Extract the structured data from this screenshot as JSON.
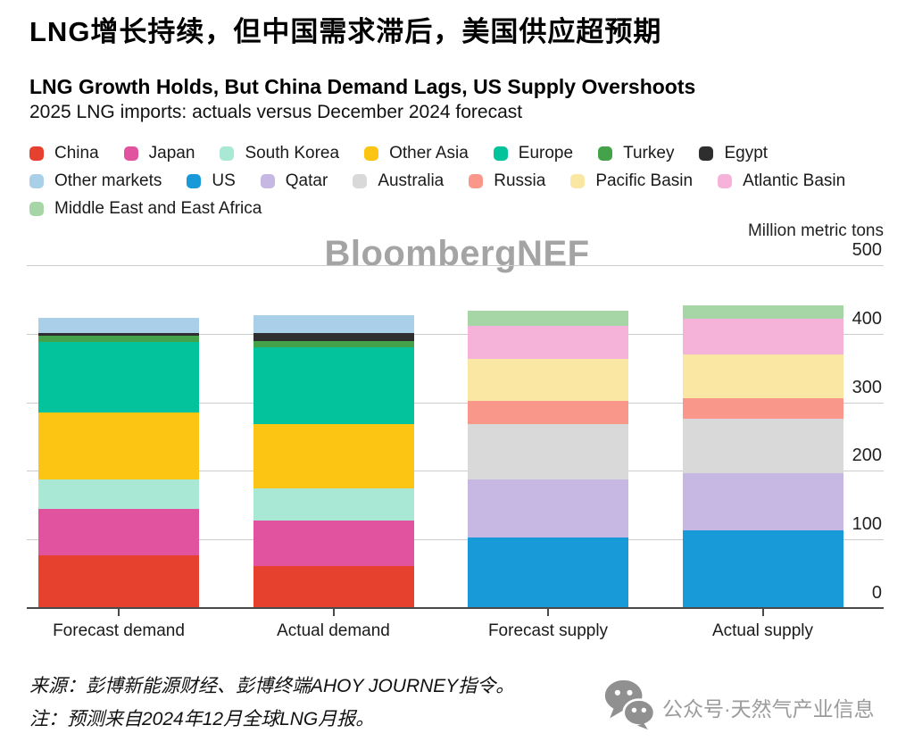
{
  "header": {
    "title_zh": "LNG增长持续，但中国需求滞后，美国供应超预期",
    "title_en": "LNG Growth Holds, But China Demand Lags, US Supply Overshoots",
    "subtitle": "2025 LNG imports: actuals versus December 2024 forecast"
  },
  "legend": {
    "rows": [
      [
        "China",
        "Japan",
        "South Korea",
        "Other Asia",
        "Europe",
        "Turkey",
        "Egypt"
      ],
      [
        "Other markets",
        "US",
        "Qatar",
        "Australia",
        "Russia",
        "Pacific Basin",
        "Atlantic Basin"
      ],
      [
        "Middle East and East Africa"
      ]
    ]
  },
  "chart_data": {
    "type": "bar",
    "stacked": true,
    "title": "LNG Growth Holds, But China Demand Lags, US Supply Overshoots",
    "subtitle": "2025 LNG imports: actuals versus December 2024 forecast",
    "unit_label": "Million metric tons",
    "ylim": [
      0,
      500
    ],
    "yticks": [
      0,
      100,
      200,
      300,
      400,
      500
    ],
    "grid": true,
    "legend_position": "top",
    "categories": [
      "Forecast demand",
      "Actual demand",
      "Forecast supply",
      "Actual supply"
    ],
    "stack_order": "bottom-to-top",
    "series": [
      {
        "name": "China",
        "color": "#e6402f",
        "values": [
          78,
          63,
          0,
          0
        ]
      },
      {
        "name": "Japan",
        "color": "#e2539f",
        "values": [
          68,
          66,
          0,
          0
        ]
      },
      {
        "name": "South Korea",
        "color": "#aae8d6",
        "values": [
          43,
          47,
          0,
          0
        ]
      },
      {
        "name": "Other Asia",
        "color": "#fcc513",
        "values": [
          97,
          93,
          0,
          0
        ]
      },
      {
        "name": "Europe",
        "color": "#03c39c",
        "values": [
          104,
          113,
          0,
          0
        ]
      },
      {
        "name": "Turkey",
        "color": "#43a24a",
        "values": [
          9,
          9,
          0,
          0
        ]
      },
      {
        "name": "Egypt",
        "color": "#2e2e2e",
        "values": [
          4,
          12,
          0,
          0
        ]
      },
      {
        "name": "Other markets",
        "color": "#aacfe9",
        "values": [
          22,
          26,
          0,
          0
        ]
      },
      {
        "name": "US",
        "color": "#189ad8",
        "values": [
          0,
          0,
          104,
          114
        ]
      },
      {
        "name": "Qatar",
        "color": "#c7b8e3",
        "values": [
          0,
          0,
          85,
          84
        ]
      },
      {
        "name": "Australia",
        "color": "#d9d9d9",
        "values": [
          0,
          0,
          81,
          79
        ]
      },
      {
        "name": "Russia",
        "color": "#f9978b",
        "values": [
          0,
          0,
          34,
          30
        ]
      },
      {
        "name": "Pacific Basin",
        "color": "#fbe7a4",
        "values": [
          0,
          0,
          61,
          64
        ]
      },
      {
        "name": "Atlantic Basin",
        "color": "#f5b3d9",
        "values": [
          0,
          0,
          48,
          52
        ]
      },
      {
        "name": "Middle East and East Africa",
        "color": "#a6d5a6",
        "values": [
          0,
          0,
          22,
          20
        ]
      }
    ],
    "totals": {
      "Forecast demand": 425,
      "Actual demand": 429,
      "Forecast supply": 435,
      "Actual supply": 443
    }
  },
  "watermark": {
    "text": "BloombergNEF"
  },
  "footer": {
    "source": "来源：彭博新能源财经、彭博终端AHOY JOURNEY指令。",
    "note": "注：预测来自2024年12月全球LNG月报。",
    "badge_text": "公众号·天然气产业信息"
  },
  "colors": {
    "gridline": "#cccccc",
    "axis": "#4a4a4a",
    "watermark_gray": "#a4a4a4",
    "badge_gray": "#9b9b9b"
  }
}
